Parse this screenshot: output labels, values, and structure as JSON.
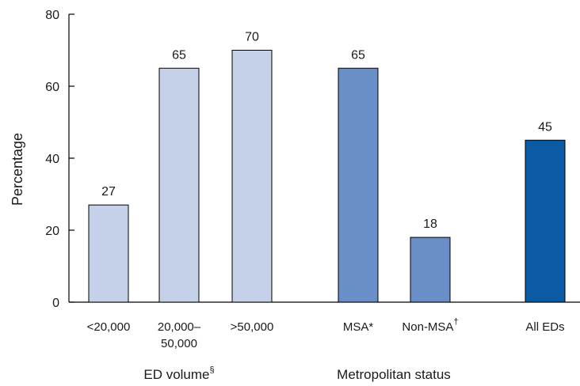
{
  "chart_data": {
    "type": "bar",
    "ylabel": "Percentage",
    "ylim": [
      0,
      80
    ],
    "yticks": [
      "0",
      "20",
      "40",
      "60",
      "80"
    ],
    "bars": [
      {
        "label": "<20,000",
        "label_lines": [
          "<20,000"
        ],
        "sup": "",
        "value": 27,
        "value_label": "27",
        "group": "ED volume",
        "color": "#c5d1e8"
      },
      {
        "label": "20,000–50,000",
        "label_lines": [
          "20,000–",
          "50,000"
        ],
        "sup": "",
        "value": 65,
        "value_label": "65",
        "group": "ED volume",
        "color": "#c5d1e8"
      },
      {
        "label": ">50,000",
        "label_lines": [
          ">50,000"
        ],
        "sup": "",
        "value": 70,
        "value_label": "70",
        "group": "ED volume",
        "color": "#c5d1e8"
      },
      {
        "label": "MSA*",
        "label_lines": [
          "MSA*"
        ],
        "sup": "",
        "value": 65,
        "value_label": "65",
        "group": "Metropolitan status",
        "color": "#6a8ec8"
      },
      {
        "label": "Non-MSA†",
        "label_lines": [
          "Non-MSA"
        ],
        "sup": "†",
        "value": 18,
        "value_label": "18",
        "group": "Metropolitan status",
        "color": "#6a8ec8"
      },
      {
        "label": "All EDs",
        "label_lines": [
          "All EDs"
        ],
        "sup": "",
        "value": 45,
        "value_label": "45",
        "group": "",
        "color": "#0a5aa5"
      }
    ],
    "groups": [
      {
        "label": "ED volume",
        "sup": "§"
      },
      {
        "label": "Metropolitan status",
        "sup": ""
      }
    ]
  }
}
